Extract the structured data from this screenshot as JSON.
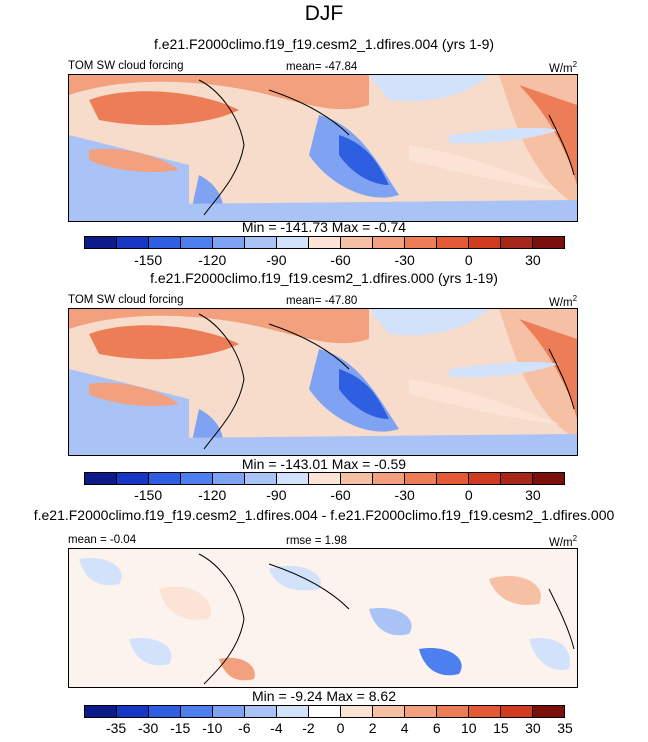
{
  "figure": {
    "title": "DJF",
    "units_label": "W/m",
    "units_sup": "2"
  },
  "panels": [
    {
      "subtitle": "f.e21.F2000climo.f19_f19.cesm2_1.dfires.004 (yrs 1-9)",
      "left_label": "TOM SW cloud forcing",
      "center_label": "mean= -47.84",
      "min_max": "Min = -141.73 Max =  -0.74",
      "colorbar_ticks": [
        "-150",
        "-120",
        "-90",
        "-60",
        "-30",
        "0",
        "30"
      ]
    },
    {
      "subtitle": "f.e21.F2000climo.f19_f19.cesm2_1.dfires.000 (yrs 1-19)",
      "left_label": "TOM SW cloud forcing",
      "center_label": "mean= -47.80",
      "min_max": "Min = -143.01 Max =  -0.59",
      "colorbar_ticks": [
        "-150",
        "-120",
        "-90",
        "-60",
        "-30",
        "0",
        "30"
      ]
    },
    {
      "subtitle": "f.e21.F2000climo.f19_f19.cesm2_1.dfires.004 - f.e21.F2000climo.f19_f19.cesm2_1.dfires.000",
      "left_label": "mean =  -0.04",
      "center_label": "rmse =  1.98",
      "min_max": "Min =  -9.24 Max =   8.62",
      "colorbar_ticks": [
        "-35",
        "-30",
        "-15",
        "-10",
        "-6",
        "-4",
        "-2",
        "0",
        "2",
        "4",
        "6",
        "10",
        "15",
        "30",
        "35"
      ]
    }
  ],
  "colors": {
    "abs_colorbar": [
      "#0c1a8a",
      "#1638c4",
      "#2e5fe0",
      "#4d7fee",
      "#7fa3f2",
      "#a9c3f6",
      "#d3e2fb",
      "#fbe4d6",
      "#f6c0a4",
      "#f2a07e",
      "#ec7d56",
      "#e45a36",
      "#cf3c20",
      "#a62818",
      "#7a0f0c"
    ],
    "diff_colorbar": [
      "#0c1a8a",
      "#1638c4",
      "#2e5fe0",
      "#4d7fee",
      "#7fa3f2",
      "#a9c3f6",
      "#d3e2fb",
      "#ffffff",
      "#fbe4d6",
      "#f6c0a4",
      "#f2a07e",
      "#ec7d56",
      "#e45a36",
      "#cf3c20",
      "#7a0f0c"
    ]
  },
  "chart_data": [
    {
      "type": "heatmap",
      "title": "f.e21.F2000climo.f19_f19.cesm2_1.dfires.004 (yrs 1-9)",
      "variable": "TOM SW cloud forcing",
      "units": "W/m2",
      "mean": -47.84,
      "min": -141.73,
      "max": -0.74,
      "colorbar_levels": [
        -150,
        -120,
        -90,
        -60,
        -30,
        0,
        30
      ]
    },
    {
      "type": "heatmap",
      "title": "f.e21.F2000climo.f19_f19.cesm2_1.dfires.000 (yrs 1-19)",
      "variable": "TOM SW cloud forcing",
      "units": "W/m2",
      "mean": -47.8,
      "min": -143.01,
      "max": -0.59,
      "colorbar_levels": [
        -150,
        -120,
        -90,
        -60,
        -30,
        0,
        30
      ]
    },
    {
      "type": "heatmap",
      "title": "f.e21.F2000climo.f19_f19.cesm2_1.dfires.004 - f.e21.F2000climo.f19_f19.cesm2_1.dfires.000",
      "units": "W/m2",
      "mean": -0.04,
      "rmse": 1.98,
      "min": -9.24,
      "max": 8.62,
      "colorbar_levels": [
        -35,
        -30,
        -15,
        -10,
        -6,
        -4,
        -2,
        0,
        2,
        4,
        6,
        10,
        15,
        30,
        35
      ]
    }
  ]
}
